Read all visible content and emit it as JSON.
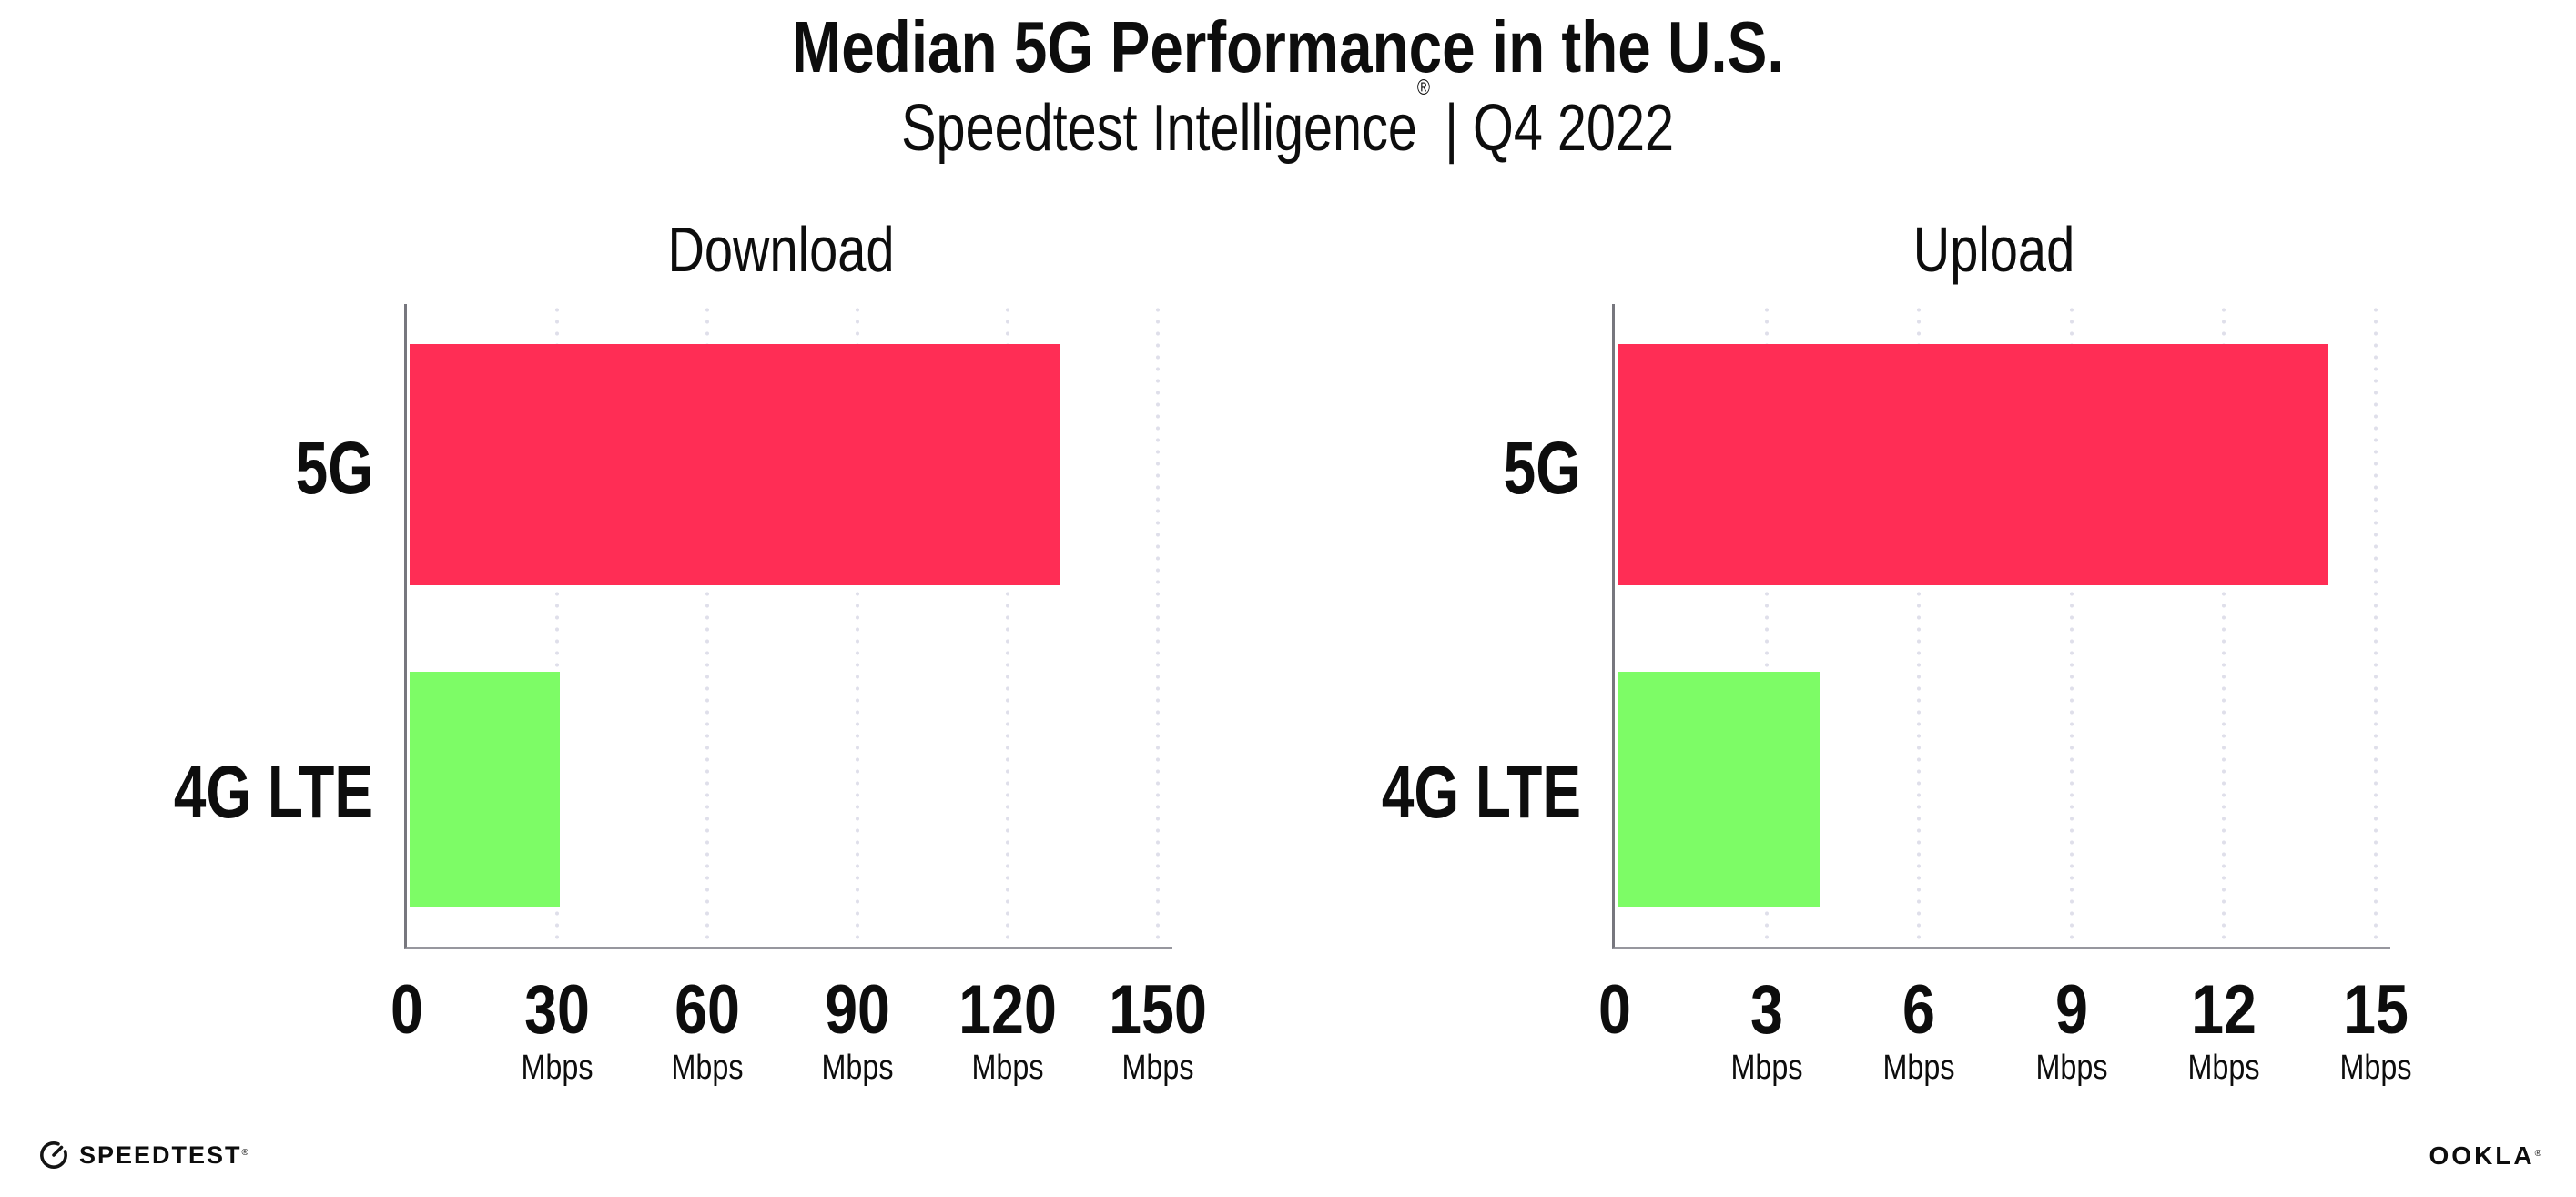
{
  "header": {
    "title": "Median 5G Performance in the U.S.",
    "subtitle": {
      "brand": "Speedtest Intelligence",
      "registered_mark": "®",
      "separator": "|",
      "period": "Q4 2022"
    }
  },
  "chart_data": [
    {
      "type": "bar",
      "orientation": "horizontal",
      "title": "Download",
      "categories": [
        "5G",
        "4G LTE"
      ],
      "values": [
        130,
        30
      ],
      "unit": "Mbps",
      "xlim": [
        0,
        150
      ],
      "xticks": [
        0,
        30,
        60,
        90,
        120,
        150
      ],
      "xtick_unit_label": "Mbps",
      "bar_colors": [
        "#FF2D55",
        "#7DFC66"
      ],
      "grid": "dotted vertical gridlines at each tick",
      "legend": "none"
    },
    {
      "type": "bar",
      "orientation": "horizontal",
      "title": "Upload",
      "categories": [
        "5G",
        "4G LTE"
      ],
      "values": [
        14,
        4
      ],
      "unit": "Mbps",
      "xlim": [
        0,
        15
      ],
      "xticks": [
        0,
        3,
        6,
        9,
        12,
        15
      ],
      "xtick_unit_label": "Mbps",
      "bar_colors": [
        "#FF2D55",
        "#7DFC66"
      ],
      "grid": "dotted vertical gridlines at each tick",
      "legend": "none"
    }
  ],
  "footer": {
    "speedtest_wordmark": "SPEEDTEST",
    "speedtest_mark": "®",
    "ookla_wordmark": "OOKLA",
    "ookla_mark": "®"
  },
  "colors": {
    "bar_5g": "#FF2D55",
    "bar_4g_lte": "#7DFC66",
    "gridline": "#DFDFEA",
    "y_axis": "#77777E",
    "x_axis": "#97979E",
    "text": "#0D0D0D",
    "background": "#FFFFFF"
  }
}
